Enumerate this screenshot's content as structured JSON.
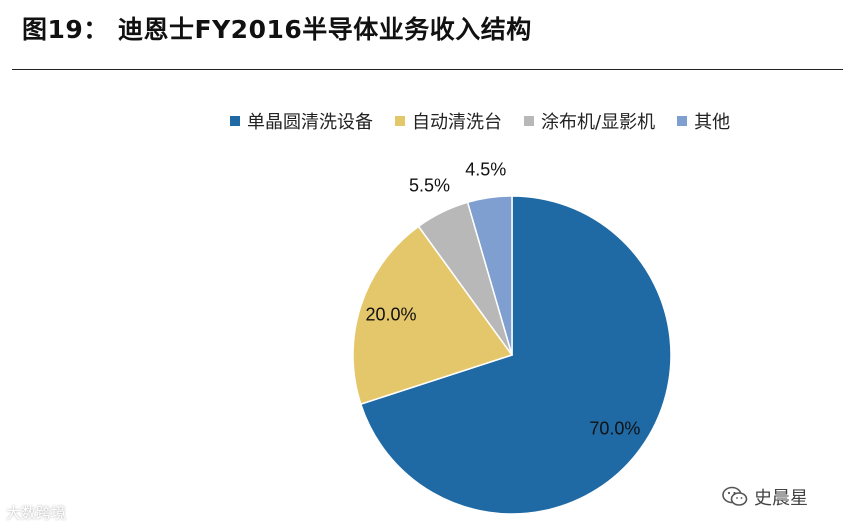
{
  "header": {
    "title": "图19：  迪恩士FY2016半导体业务收入结构"
  },
  "chart_data": {
    "type": "pie",
    "title": "",
    "legend_position": "top",
    "start": "12 o'clock, clockwise",
    "slices": [
      {
        "label": "单晶圆清洗设备",
        "value": 70.0,
        "display": "70.0%",
        "color": "#1f6aa5"
      },
      {
        "label": "自动清洗台",
        "value": 20.0,
        "display": "20.0%",
        "color": "#e5c76b"
      },
      {
        "label": "涂布机/显影机",
        "value": 5.5,
        "display": "5.5%",
        "color": "#b8b8b8"
      },
      {
        "label": "其他",
        "value": 4.5,
        "display": "4.5%",
        "color": "#7e9fd0"
      }
    ]
  },
  "watermarks": {
    "left": "大数跨境",
    "right": "史晨星",
    "right_icon": "wechat-icon"
  }
}
